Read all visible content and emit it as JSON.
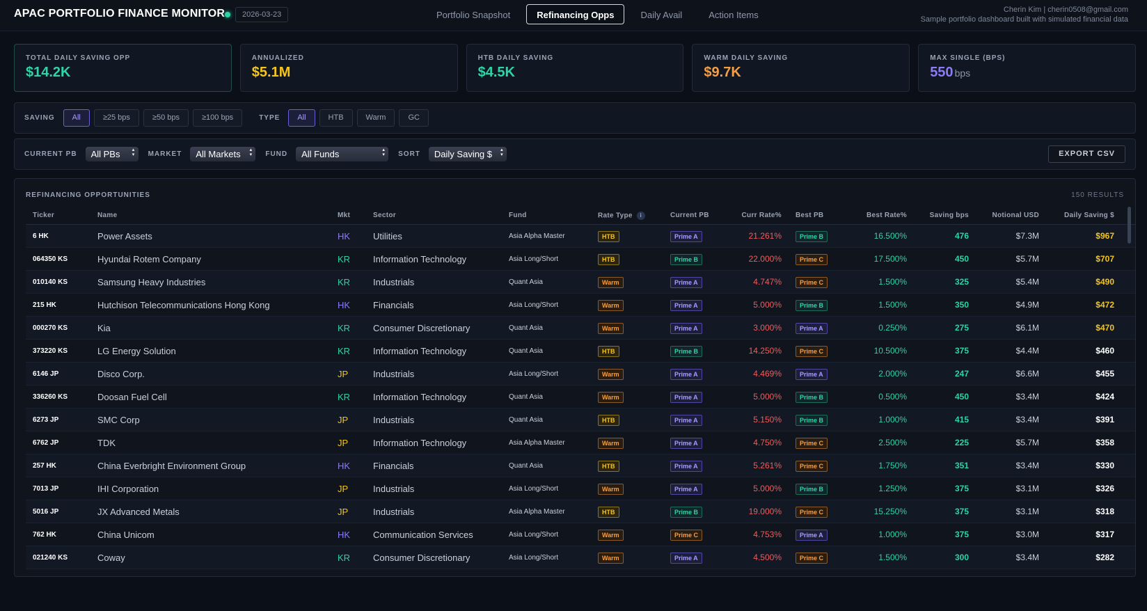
{
  "header": {
    "title": "APAC PORTFOLIO FINANCE MONITOR",
    "date": "2026-03-23",
    "tabs": [
      {
        "label": "Portfolio Snapshot",
        "active": false
      },
      {
        "label": "Refinancing Opps",
        "active": true
      },
      {
        "label": "Daily Avail",
        "active": false
      },
      {
        "label": "Action Items",
        "active": false
      }
    ],
    "user": "Cherin Kim | cherin0508@gmail.com",
    "subtitle": "Sample portfolio dashboard built with simulated financial data"
  },
  "kpis": [
    {
      "label": "TOTAL DAILY SAVING OPP",
      "value": "$14.2K",
      "unit": "",
      "color": "#2dd4a7"
    },
    {
      "label": "ANNUALIZED",
      "value": "$5.1M",
      "unit": "",
      "color": "#f5c518"
    },
    {
      "label": "HTB DAILY SAVING",
      "value": "$4.5K",
      "unit": "",
      "color": "#2dd4a7"
    },
    {
      "label": "WARM DAILY SAVING",
      "value": "$9.7K",
      "unit": "",
      "color": "#f59e45"
    },
    {
      "label": "MAX SINGLE (BPS)",
      "value": "550",
      "unit": "bps",
      "color": "#8b7cf6"
    }
  ],
  "filters": {
    "saving_label": "SAVING",
    "saving_options": [
      {
        "label": "All",
        "active": true
      },
      {
        "label": "≥25 bps",
        "active": false
      },
      {
        "label": "≥50 bps",
        "active": false
      },
      {
        "label": "≥100 bps",
        "active": false
      }
    ],
    "type_label": "TYPE",
    "type_options": [
      {
        "label": "All",
        "active": true
      },
      {
        "label": "HTB",
        "active": false
      },
      {
        "label": "Warm",
        "active": false
      },
      {
        "label": "GC",
        "active": false
      }
    ],
    "current_pb_label": "CURRENT PB",
    "current_pb_value": "All PBs",
    "market_label": "MARKET",
    "market_value": "All Markets",
    "fund_label": "FUND",
    "fund_value": "All Funds",
    "sort_label": "SORT",
    "sort_value": "Daily Saving $",
    "export_label": "EXPORT CSV"
  },
  "table": {
    "title": "REFINANCING OPPORTUNITIES",
    "results": "150 RESULTS",
    "columns": [
      "Ticker",
      "Name",
      "Mkt",
      "Sector",
      "Fund",
      "Rate Type",
      "Current PB",
      "Curr Rate%",
      "Best PB",
      "Best Rate%",
      "Saving bps",
      "Notional USD",
      "Daily Saving $"
    ],
    "rows": [
      {
        "ticker": "6 HK",
        "name": "Power Assets",
        "mkt": "HK",
        "sector": "Utilities",
        "fund": "Asia Alpha Master",
        "rate_type": "HTB",
        "current_pb": "Prime A",
        "curr_rate": "21.261%",
        "best_pb": "Prime B",
        "best_rate": "16.500%",
        "saving_bps": "476",
        "notional": "$7.3M",
        "daily": "$967",
        "high": true
      },
      {
        "ticker": "064350 KS",
        "name": "Hyundai Rotem Company",
        "mkt": "KR",
        "sector": "Information Technology",
        "fund": "Asia Long/Short",
        "rate_type": "HTB",
        "current_pb": "Prime B",
        "curr_rate": "22.000%",
        "best_pb": "Prime C",
        "best_rate": "17.500%",
        "saving_bps": "450",
        "notional": "$5.7M",
        "daily": "$707",
        "high": true
      },
      {
        "ticker": "010140 KS",
        "name": "Samsung Heavy Industries",
        "mkt": "KR",
        "sector": "Industrials",
        "fund": "Quant Asia",
        "rate_type": "Warm",
        "current_pb": "Prime A",
        "curr_rate": "4.747%",
        "best_pb": "Prime C",
        "best_rate": "1.500%",
        "saving_bps": "325",
        "notional": "$5.4M",
        "daily": "$490",
        "high": true
      },
      {
        "ticker": "215 HK",
        "name": "Hutchison Telecommunications Hong Kong",
        "mkt": "HK",
        "sector": "Financials",
        "fund": "Asia Long/Short",
        "rate_type": "Warm",
        "current_pb": "Prime A",
        "curr_rate": "5.000%",
        "best_pb": "Prime B",
        "best_rate": "1.500%",
        "saving_bps": "350",
        "notional": "$4.9M",
        "daily": "$472",
        "high": true
      },
      {
        "ticker": "000270 KS",
        "name": "Kia",
        "mkt": "KR",
        "sector": "Consumer Discretionary",
        "fund": "Quant Asia",
        "rate_type": "Warm",
        "current_pb": "Prime A",
        "curr_rate": "3.000%",
        "best_pb": "Prime A",
        "best_rate": "0.250%",
        "saving_bps": "275",
        "notional": "$6.1M",
        "daily": "$470",
        "high": true
      },
      {
        "ticker": "373220 KS",
        "name": "LG Energy Solution",
        "mkt": "KR",
        "sector": "Information Technology",
        "fund": "Quant Asia",
        "rate_type": "HTB",
        "current_pb": "Prime B",
        "curr_rate": "14.250%",
        "best_pb": "Prime C",
        "best_rate": "10.500%",
        "saving_bps": "375",
        "notional": "$4.4M",
        "daily": "$460",
        "high": false
      },
      {
        "ticker": "6146 JP",
        "name": "Disco Corp.",
        "mkt": "JP",
        "sector": "Industrials",
        "fund": "Asia Long/Short",
        "rate_type": "Warm",
        "current_pb": "Prime A",
        "curr_rate": "4.469%",
        "best_pb": "Prime A",
        "best_rate": "2.000%",
        "saving_bps": "247",
        "notional": "$6.6M",
        "daily": "$455",
        "high": false
      },
      {
        "ticker": "336260 KS",
        "name": "Doosan Fuel Cell",
        "mkt": "KR",
        "sector": "Information Technology",
        "fund": "Quant Asia",
        "rate_type": "Warm",
        "current_pb": "Prime A",
        "curr_rate": "5.000%",
        "best_pb": "Prime B",
        "best_rate": "0.500%",
        "saving_bps": "450",
        "notional": "$3.4M",
        "daily": "$424",
        "high": false
      },
      {
        "ticker": "6273 JP",
        "name": "SMC Corp",
        "mkt": "JP",
        "sector": "Industrials",
        "fund": "Quant Asia",
        "rate_type": "HTB",
        "current_pb": "Prime A",
        "curr_rate": "5.150%",
        "best_pb": "Prime B",
        "best_rate": "1.000%",
        "saving_bps": "415",
        "notional": "$3.4M",
        "daily": "$391",
        "high": false
      },
      {
        "ticker": "6762 JP",
        "name": "TDK",
        "mkt": "JP",
        "sector": "Information Technology",
        "fund": "Asia Alpha Master",
        "rate_type": "Warm",
        "current_pb": "Prime A",
        "curr_rate": "4.750%",
        "best_pb": "Prime C",
        "best_rate": "2.500%",
        "saving_bps": "225",
        "notional": "$5.7M",
        "daily": "$358",
        "high": false
      },
      {
        "ticker": "257 HK",
        "name": "China Everbright Environment Group",
        "mkt": "HK",
        "sector": "Financials",
        "fund": "Quant Asia",
        "rate_type": "HTB",
        "current_pb": "Prime A",
        "curr_rate": "5.261%",
        "best_pb": "Prime C",
        "best_rate": "1.750%",
        "saving_bps": "351",
        "notional": "$3.4M",
        "daily": "$330",
        "high": false
      },
      {
        "ticker": "7013 JP",
        "name": "IHI Corporation",
        "mkt": "JP",
        "sector": "Industrials",
        "fund": "Asia Long/Short",
        "rate_type": "Warm",
        "current_pb": "Prime A",
        "curr_rate": "5.000%",
        "best_pb": "Prime B",
        "best_rate": "1.250%",
        "saving_bps": "375",
        "notional": "$3.1M",
        "daily": "$326",
        "high": false
      },
      {
        "ticker": "5016 JP",
        "name": "JX Advanced Metals",
        "mkt": "JP",
        "sector": "Industrials",
        "fund": "Asia Alpha Master",
        "rate_type": "HTB",
        "current_pb": "Prime B",
        "curr_rate": "19.000%",
        "best_pb": "Prime C",
        "best_rate": "15.250%",
        "saving_bps": "375",
        "notional": "$3.1M",
        "daily": "$318",
        "high": false
      },
      {
        "ticker": "762 HK",
        "name": "China Unicom",
        "mkt": "HK",
        "sector": "Communication Services",
        "fund": "Asia Long/Short",
        "rate_type": "Warm",
        "current_pb": "Prime C",
        "curr_rate": "4.753%",
        "best_pb": "Prime A",
        "best_rate": "1.000%",
        "saving_bps": "375",
        "notional": "$3.0M",
        "daily": "$317",
        "high": false
      },
      {
        "ticker": "021240 KS",
        "name": "Coway",
        "mkt": "KR",
        "sector": "Consumer Discretionary",
        "fund": "Asia Long/Short",
        "rate_type": "Warm",
        "current_pb": "Prime A",
        "curr_rate": "4.500%",
        "best_pb": "Prime C",
        "best_rate": "1.500%",
        "saving_bps": "300",
        "notional": "$3.4M",
        "daily": "$282",
        "high": false
      }
    ]
  }
}
